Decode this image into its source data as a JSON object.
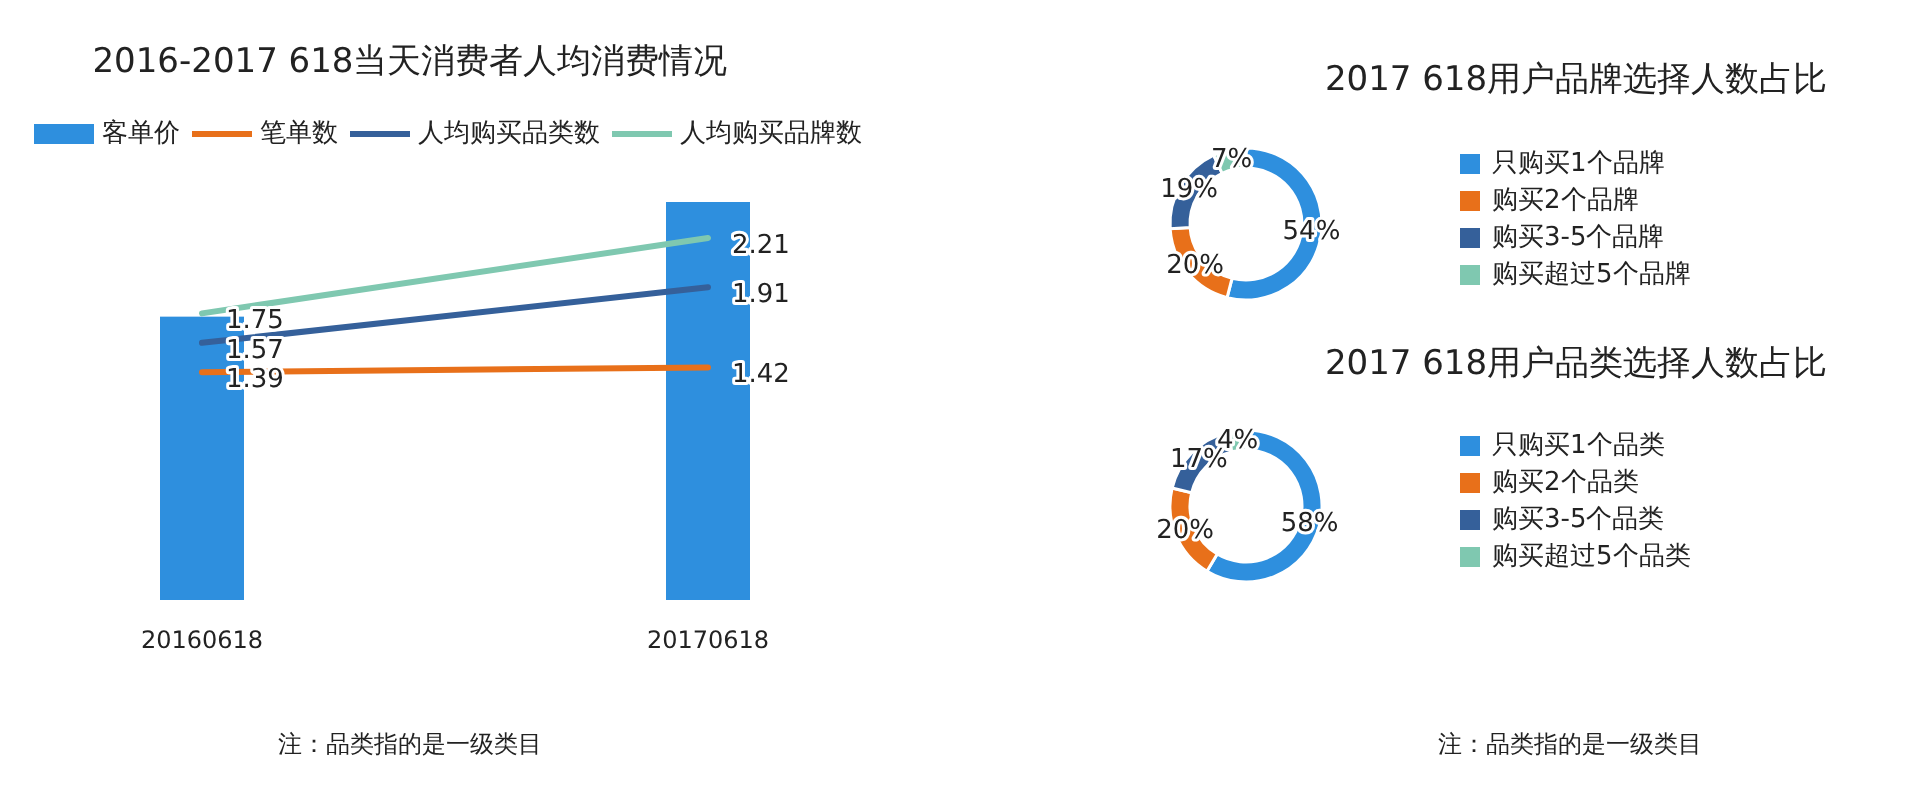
{
  "chart_data": [
    {
      "type": "bar",
      "title": "2016-2017 618当天消费者人均消费情况",
      "categories": [
        "20160618",
        "20170618"
      ],
      "data_labels": true,
      "legend": "top",
      "annotations": [
        "注：品类指的是一级类目"
      ],
      "series": [
        {
          "name": "客单价",
          "type": "bar",
          "color": "#2e8fde",
          "values": [
            1.73,
            2.43
          ],
          "value_labels": [
            null,
            null
          ]
        },
        {
          "name": "笔单数",
          "type": "line",
          "color": "#e8701a",
          "values": [
            1.39,
            1.42
          ]
        },
        {
          "name": "人均购买品类数",
          "type": "line",
          "color": "#35609a",
          "values": [
            1.57,
            1.91
          ]
        },
        {
          "name": "人均购买品牌数",
          "type": "line",
          "color": "#7fc8b0",
          "values": [
            1.75,
            2.21
          ]
        }
      ]
    },
    {
      "type": "donut",
      "title": "2017 618用户品牌选择人数占比",
      "legend": "right",
      "categories": [
        "只购买1个品牌",
        "购买2个品牌",
        "购买3-5个品牌",
        "购买超过5个品牌"
      ],
      "values": [
        54,
        20,
        19,
        7
      ],
      "value_labels": [
        "54%",
        "20%",
        "19%",
        "7%"
      ],
      "colors": [
        "#2e8fde",
        "#e8701a",
        "#35609a",
        "#7fc8b0"
      ]
    },
    {
      "type": "donut",
      "title": "2017 618用户品类选择人数占比",
      "legend": "right",
      "categories": [
        "只购买1个品类",
        "购买2个品类",
        "购买3-5个品类",
        "购买超过5个品类"
      ],
      "values": [
        58,
        20,
        17,
        4
      ],
      "value_labels": [
        "58%",
        "20%",
        "17%",
        "4%"
      ],
      "colors": [
        "#2e8fde",
        "#e8701a",
        "#35609a",
        "#7fc8b0"
      ],
      "annotations": [
        "注：品类指的是一级类目"
      ]
    }
  ]
}
